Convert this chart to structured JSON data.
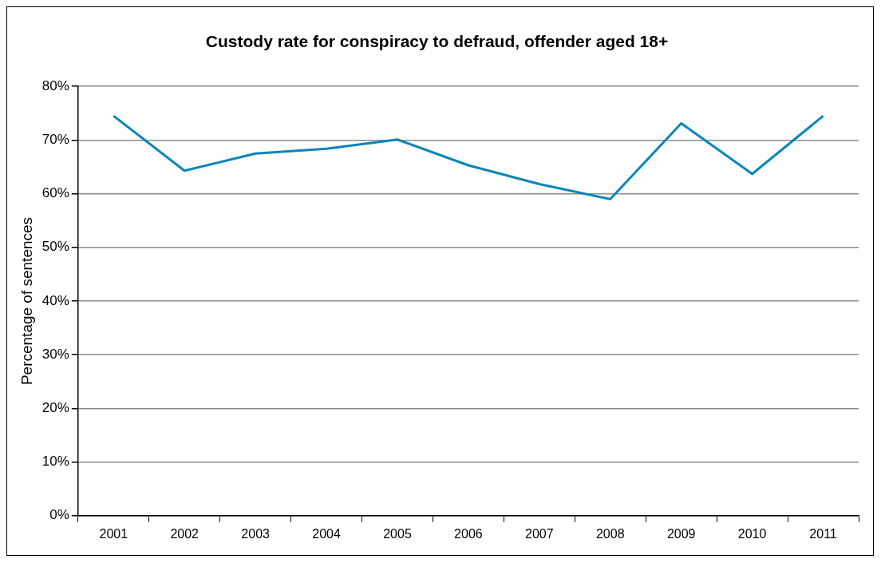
{
  "chart_data": {
    "type": "line",
    "title": "Custody rate for conspiracy to defraud, offender aged 18+",
    "ylabel": "Percentage of sentences",
    "categories": [
      "2001",
      "2002",
      "2003",
      "2004",
      "2005",
      "2006",
      "2007",
      "2008",
      "2009",
      "2010",
      "2011"
    ],
    "series": [
      {
        "color": "#0a86b8",
        "values": [
          74.5,
          64.3,
          67.5,
          68.4,
          70.1,
          65.3,
          61.8,
          59.0,
          73.1,
          63.7,
          74.5
        ]
      }
    ],
    "ylim": [
      0,
      80
    ],
    "yticks": [
      {
        "value": 0,
        "label": "0%"
      },
      {
        "value": 10,
        "label": "10%"
      },
      {
        "value": 20,
        "label": "20%"
      },
      {
        "value": 30,
        "label": "30%"
      },
      {
        "value": 40,
        "label": "40%"
      },
      {
        "value": 50,
        "label": "50%"
      },
      {
        "value": 60,
        "label": "60%"
      },
      {
        "value": 70,
        "label": "70%"
      },
      {
        "value": 80,
        "label": "80%"
      }
    ],
    "grid": "y",
    "legend": false,
    "marker": "none",
    "line_style": "solid"
  }
}
